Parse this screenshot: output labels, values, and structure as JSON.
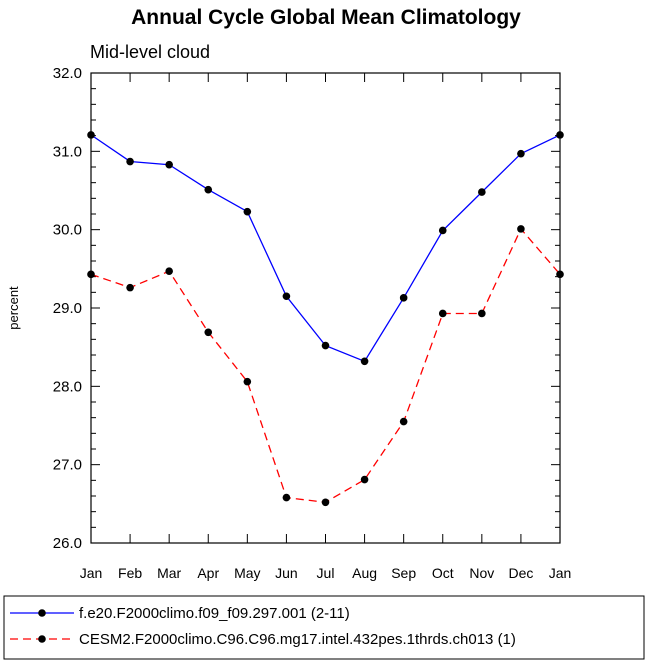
{
  "chart_data": {
    "type": "line",
    "title": "Annual Cycle Global Mean Climatology",
    "subtitle": "Mid-level cloud",
    "xlabel": "",
    "ylabel": "percent",
    "ylim": [
      26.0,
      32.0
    ],
    "yticks": [
      "26.0",
      "27.0",
      "28.0",
      "29.0",
      "30.0",
      "31.0",
      "32.0"
    ],
    "categories": [
      "Jan",
      "Feb",
      "Mar",
      "Apr",
      "May",
      "Jun",
      "Jul",
      "Aug",
      "Sep",
      "Oct",
      "Nov",
      "Dec",
      "Jan"
    ],
    "legend_position": "bottom",
    "series": [
      {
        "name": "f.e20.F2000climo.f09_f09.297.001 (2-11)",
        "color": "#0000ff",
        "dash": "solid",
        "values": [
          31.21,
          30.87,
          30.83,
          30.51,
          30.23,
          29.15,
          28.52,
          28.32,
          29.13,
          29.99,
          30.48,
          30.97,
          31.21
        ]
      },
      {
        "name": "CESM2.F2000climo.C96.C96.mg17.intel.432pes.1thrds.ch013 (1)",
        "color": "#ff0000",
        "dash": "dashed",
        "values": [
          29.43,
          29.26,
          29.47,
          28.69,
          28.06,
          26.58,
          26.52,
          26.81,
          27.55,
          28.93,
          28.93,
          30.01,
          29.43
        ]
      }
    ]
  }
}
